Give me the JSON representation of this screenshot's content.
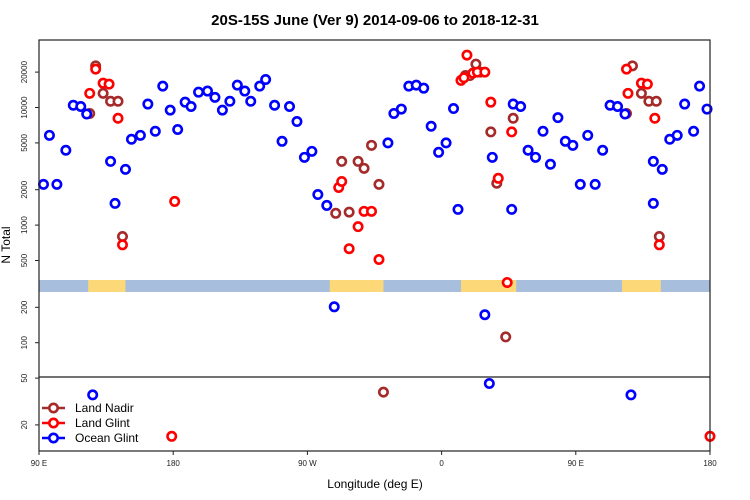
{
  "chart_data": {
    "type": "scatter",
    "title": "20S-15S June (Ver 9)   2014-09-06 to 2018-12-31",
    "xlabel": "Longitude (deg E)",
    "ylabel": "N Total",
    "x_units": "unwrapped longitude degrees (90 = 90E, 180 = 180, 270 = 90W, 360 = 0, 450 = 90E, 540 = 180)",
    "xlim": [
      90,
      540
    ],
    "yscale": "log",
    "ylim": [
      12,
      37500
    ],
    "x_ticks": [
      {
        "value": 90,
        "label": "90 E"
      },
      {
        "value": 180,
        "label": "180"
      },
      {
        "value": 270,
        "label": "90 W"
      },
      {
        "value": 360,
        "label": "0"
      },
      {
        "value": 450,
        "label": "90 E"
      },
      {
        "value": 540,
        "label": "180"
      }
    ],
    "y_ticks": [
      {
        "value": 20000,
        "label": "20000"
      },
      {
        "value": 10000,
        "label": "10000"
      },
      {
        "value": 5000,
        "label": "5000"
      },
      {
        "value": 2000,
        "label": "2000"
      },
      {
        "value": 1000,
        "label": "1000"
      },
      {
        "value": 500,
        "label": "500"
      },
      {
        "value": 200,
        "label": "200"
      },
      {
        "value": 100,
        "label": "100"
      },
      {
        "value": 50,
        "label": "50"
      },
      {
        "value": 20,
        "label": "20"
      }
    ],
    "reference_line": 50,
    "surface_strip": {
      "ocean_color": "#a8bedd",
      "land_color": "#fdd878",
      "land_segments": [
        [
          123,
          148
        ],
        [
          285,
          321
        ],
        [
          373,
          410
        ],
        [
          481,
          507
        ]
      ]
    },
    "legend_position": "bottom-left",
    "series": [
      {
        "name": "Land Nadir",
        "color": "#a52a2a",
        "points": [
          [
            124,
            8900
          ],
          [
            128,
            22600
          ],
          [
            133,
            13200
          ],
          [
            138,
            11300
          ],
          [
            143,
            11300
          ],
          [
            146,
            800
          ],
          [
            289,
            1260
          ],
          [
            293,
            3480
          ],
          [
            298,
            1290
          ],
          [
            304,
            3480
          ],
          [
            308,
            3040
          ],
          [
            313,
            4770
          ],
          [
            318,
            2220
          ],
          [
            321,
            38
          ],
          [
            376,
            18700
          ],
          [
            379,
            18700
          ],
          [
            383,
            23400
          ],
          [
            386,
            20000
          ],
          [
            393,
            6200
          ],
          [
            397,
            2270
          ],
          [
            403,
            112
          ],
          [
            408,
            8100
          ],
          [
            484,
            8900
          ],
          [
            488,
            22600
          ],
          [
            494,
            13200
          ],
          [
            499,
            11300
          ],
          [
            504,
            11300
          ],
          [
            506,
            800
          ]
        ]
      },
      {
        "name": "Land Glint",
        "color": "#ff0000",
        "points": [
          [
            124,
            13200
          ],
          [
            128,
            21200
          ],
          [
            133,
            16100
          ],
          [
            137,
            15800
          ],
          [
            143,
            8100
          ],
          [
            146,
            680
          ],
          [
            179,
            16
          ],
          [
            181,
            1590
          ],
          [
            291,
            2090
          ],
          [
            293,
            2350
          ],
          [
            298,
            630
          ],
          [
            304,
            970
          ],
          [
            308,
            1310
          ],
          [
            313,
            1310
          ],
          [
            318,
            510
          ],
          [
            373,
            17000
          ],
          [
            375,
            17900
          ],
          [
            377,
            27900
          ],
          [
            381,
            19600
          ],
          [
            384,
            20000
          ],
          [
            389,
            20000
          ],
          [
            393,
            11100
          ],
          [
            398,
            2500
          ],
          [
            404,
            325
          ],
          [
            407,
            6200
          ],
          [
            484,
            21200
          ],
          [
            485,
            13200
          ],
          [
            494,
            16100
          ],
          [
            498,
            15800
          ],
          [
            503,
            8100
          ],
          [
            506,
            680
          ],
          [
            540,
            16
          ]
        ]
      },
      {
        "name": "Ocean Glint",
        "color": "#0000ff",
        "points": [
          [
            93,
            2220
          ],
          [
            97,
            5800
          ],
          [
            102,
            2220
          ],
          [
            108,
            4330
          ],
          [
            113,
            10450
          ],
          [
            118,
            10200
          ],
          [
            122,
            8800
          ],
          [
            126,
            36
          ],
          [
            138,
            3480
          ],
          [
            141,
            1530
          ],
          [
            148,
            2980
          ],
          [
            152,
            5370
          ],
          [
            158,
            5800
          ],
          [
            163,
            10700
          ],
          [
            168,
            6280
          ],
          [
            173,
            15200
          ],
          [
            178,
            9500
          ],
          [
            183,
            6500
          ],
          [
            188,
            11100
          ],
          [
            192,
            10200
          ],
          [
            197,
            13500
          ],
          [
            203,
            13800
          ],
          [
            208,
            12200
          ],
          [
            213,
            9500
          ],
          [
            218,
            11300
          ],
          [
            223,
            15500
          ],
          [
            228,
            13800
          ],
          [
            232,
            11300
          ],
          [
            238,
            15200
          ],
          [
            242,
            17300
          ],
          [
            248,
            10450
          ],
          [
            253,
            5160
          ],
          [
            258,
            10200
          ],
          [
            263,
            7600
          ],
          [
            268,
            3770
          ],
          [
            273,
            4240
          ],
          [
            277,
            1820
          ],
          [
            283,
            1470
          ],
          [
            288,
            202
          ],
          [
            324,
            5000
          ],
          [
            328,
            8900
          ],
          [
            333,
            9700
          ],
          [
            338,
            15200
          ],
          [
            343,
            15500
          ],
          [
            348,
            14600
          ],
          [
            353,
            6930
          ],
          [
            358,
            4160
          ],
          [
            363,
            5000
          ],
          [
            368,
            9800
          ],
          [
            371,
            1360
          ],
          [
            389,
            173
          ],
          [
            392,
            45
          ],
          [
            394,
            3770
          ],
          [
            407,
            1360
          ],
          [
            408,
            10700
          ],
          [
            413,
            10200
          ],
          [
            418,
            4330
          ],
          [
            423,
            3770
          ],
          [
            428,
            6280
          ],
          [
            433,
            3290
          ],
          [
            438,
            8200
          ],
          [
            443,
            5160
          ],
          [
            448,
            4770
          ],
          [
            453,
            2220
          ],
          [
            458,
            5800
          ],
          [
            463,
            2220
          ],
          [
            468,
            4330
          ],
          [
            473,
            10450
          ],
          [
            478,
            10200
          ],
          [
            483,
            8800
          ],
          [
            487,
            36
          ],
          [
            502,
            3480
          ],
          [
            502,
            1530
          ],
          [
            508,
            2980
          ],
          [
            513,
            5370
          ],
          [
            518,
            5800
          ],
          [
            523,
            10700
          ],
          [
            529,
            6280
          ],
          [
            533,
            15200
          ],
          [
            538,
            9700
          ]
        ]
      }
    ]
  }
}
